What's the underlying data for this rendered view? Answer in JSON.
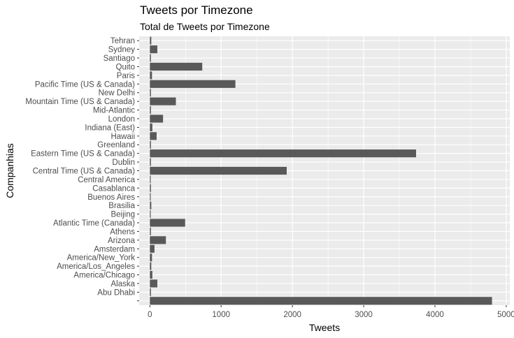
{
  "chart_data": {
    "type": "bar",
    "orientation": "horizontal",
    "title": "Tweets por Timezone",
    "subtitle": "Total de Tweets por Timezone",
    "xlabel": "Tweets",
    "ylabel": "Companhias",
    "xlim": [
      -150,
      5050
    ],
    "xticks": [
      0,
      1000,
      2000,
      3000,
      4000,
      5000
    ],
    "grid": true,
    "legend": "none",
    "colors": {
      "bar": "#595959",
      "panel": "#ebebeb",
      "grid": "#ffffff"
    },
    "categories": [
      "",
      "Abu Dhabi",
      "Alaska",
      "America/Chicago",
      "America/Los_Angeles",
      "America/New_York",
      "Amsterdam",
      "Arizona",
      "Athens",
      "Atlantic Time (Canada)",
      "Beijing",
      "Brasilia",
      "Buenos Aires",
      "Casablanca",
      "Central America",
      "Central Time (US & Canada)",
      "Dublin",
      "Eastern Time (US & Canada)",
      "Greenland",
      "Hawaii",
      "Indiana (East)",
      "London",
      "Mid-Atlantic",
      "Mountain Time (US & Canada)",
      "New Delhi",
      "Pacific Time (US & Canada)",
      "Paris",
      "Quito",
      "Santiago",
      "Sydney",
      "Tehran"
    ],
    "values": [
      4800,
      15,
      105,
      35,
      20,
      30,
      65,
      225,
      15,
      495,
      10,
      20,
      8,
      15,
      8,
      1920,
      15,
      3735,
      15,
      95,
      35,
      185,
      15,
      365,
      15,
      1200,
      30,
      735,
      15,
      105,
      20
    ]
  }
}
